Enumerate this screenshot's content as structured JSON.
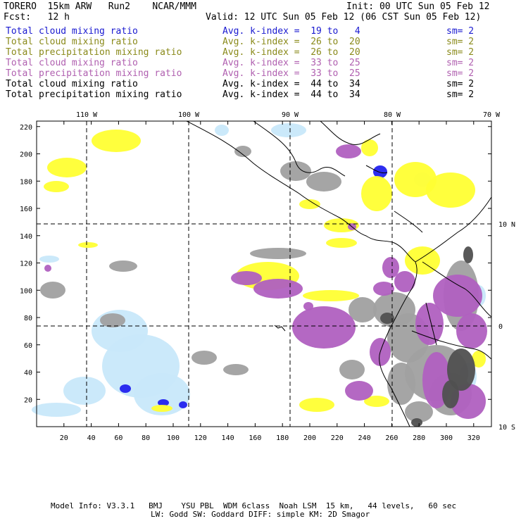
{
  "header": {
    "model": "TORERO  15km ARW   Run2    NCAR/MMM",
    "init": "Init: 00 UTC Sun 05 Feb 12",
    "fcst": "Fcst:   12 h",
    "valid": "Valid: 12 UTC Sun 05 Feb 12 (06 CST Sun 05 Feb 12)"
  },
  "legend": [
    {
      "name": "Total cloud mixing ratio",
      "range": "Avg. k-index =  19 to   4",
      "sm": "sm= 2",
      "color": "#1a1ad0"
    },
    {
      "name": "Total cloud mixing ratio",
      "range": "Avg. k-index =  26 to  20",
      "sm": "sm= 2",
      "color": "#8a8a1a"
    },
    {
      "name": "Total precipitation mixing ratio",
      "range": "Avg. k-index =  26 to  20",
      "sm": "sm= 2",
      "color": "#8a8a1a"
    },
    {
      "name": "Total cloud mixing ratio",
      "range": "Avg. k-index =  33 to  25",
      "sm": "sm= 2",
      "color": "#b060b0"
    },
    {
      "name": "Total precipitation mixing ratio",
      "range": "Avg. k-index =  33 to  25",
      "sm": "sm= 2",
      "color": "#b060b0"
    },
    {
      "name": "Total cloud mixing ratio",
      "range": "Avg. k-index =  44 to  34",
      "sm": "sm= 2",
      "color": "#000000"
    },
    {
      "name": "Total precipitation mixing ratio",
      "range": "Avg. k-index =  44 to  34",
      "sm": "sm= 2",
      "color": "#000000"
    }
  ],
  "axes": {
    "lon_labels": [
      "110 W",
      "100 W",
      "90 W",
      "80 W",
      "70 W"
    ],
    "lat_labels": [
      "10 N",
      "0",
      "10 S"
    ],
    "x_ticks": [
      "20",
      "40",
      "60",
      "80",
      "100",
      "120",
      "140",
      "160",
      "180",
      "200",
      "220",
      "240",
      "260",
      "280",
      "300",
      "320"
    ],
    "y_ticks": [
      "20",
      "40",
      "60",
      "80",
      "100",
      "120",
      "140",
      "160",
      "180",
      "200",
      "220"
    ]
  },
  "footer": {
    "line1": "Model Info: V3.3.1   BMJ    YSU PBL  WDM 6class  Noah LSM  15 km,   44 levels,   60 sec",
    "line2": "LW: Godd SW: Goddard DIFF: simple KM: 2D Smagor"
  },
  "colors": {
    "light_blue": "#c8e8fa",
    "blue": "#2222ee",
    "yellow": "#ffff33",
    "purple": "#b060c0",
    "gray": "#a0a0a0",
    "dark_gray": "#505050"
  }
}
